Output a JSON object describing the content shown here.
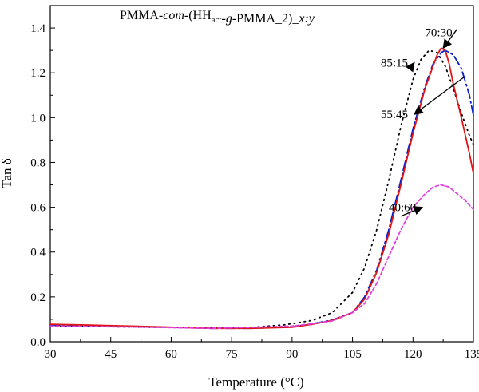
{
  "chart_data": {
    "type": "line",
    "title": {
      "parts": [
        {
          "text": "PMMA-",
          "style": "normal"
        },
        {
          "text": "com",
          "style": "italic"
        },
        {
          "text": "-(HH",
          "style": "normal"
        },
        {
          "text": "act",
          "style": "sub"
        },
        {
          "text": "-",
          "style": "normal"
        },
        {
          "text": "g",
          "style": "italic"
        },
        {
          "text": "-PMMA_2)_",
          "style": "normal"
        },
        {
          "text": "x:y",
          "style": "italic"
        }
      ]
    },
    "xlabel": "Temperature (°C)",
    "ylabel": "Tan δ",
    "xlim": [
      30,
      135
    ],
    "ylim": [
      0.0,
      1.5
    ],
    "xticks": [
      "30",
      "45",
      "60",
      "75",
      "90",
      "105",
      "120",
      "135"
    ],
    "yticks": [
      "0.0",
      "0.2",
      "0.4",
      "0.6",
      "0.8",
      "1.0",
      "1.2",
      "1.4"
    ],
    "grid": false,
    "series": [
      {
        "name": "85:15",
        "color": "#000000",
        "dash": "1.5 5",
        "x": [
          30,
          40,
          50,
          60,
          70,
          80,
          88,
          95,
          100,
          105,
          108,
          111,
          114,
          117,
          120,
          122,
          124,
          126,
          128,
          130,
          132,
          134,
          135
        ],
        "y": [
          0.07,
          0.068,
          0.066,
          0.064,
          0.062,
          0.064,
          0.075,
          0.095,
          0.13,
          0.22,
          0.33,
          0.5,
          0.72,
          0.96,
          1.17,
          1.26,
          1.3,
          1.29,
          1.23,
          1.13,
          1.02,
          0.92,
          0.88
        ]
      },
      {
        "name": "55:45",
        "color": "#0a1fcc",
        "dash": "12 4 2 4",
        "x": [
          30,
          40,
          50,
          60,
          70,
          80,
          90,
          95,
          100,
          105,
          108,
          111,
          114,
          117,
          120,
          123,
          125,
          127,
          128,
          130,
          132,
          134,
          135
        ],
        "y": [
          0.075,
          0.072,
          0.068,
          0.064,
          0.06,
          0.06,
          0.066,
          0.08,
          0.097,
          0.13,
          0.2,
          0.32,
          0.5,
          0.72,
          0.95,
          1.14,
          1.24,
          1.29,
          1.3,
          1.28,
          1.22,
          1.1,
          1.01
        ]
      },
      {
        "name": "70:30",
        "color": "#e01414",
        "dash": "",
        "x": [
          30,
          40,
          50,
          60,
          70,
          80,
          90,
          95,
          100,
          105,
          108,
          111,
          114,
          117,
          120,
          123,
          125,
          126,
          127,
          128,
          129,
          130,
          132,
          134,
          135
        ],
        "y": [
          0.078,
          0.074,
          0.07,
          0.065,
          0.06,
          0.06,
          0.065,
          0.078,
          0.095,
          0.13,
          0.19,
          0.31,
          0.48,
          0.7,
          0.93,
          1.13,
          1.23,
          1.28,
          1.31,
          1.3,
          1.24,
          1.15,
          1.0,
          0.84,
          0.75
        ]
      },
      {
        "name": "40:60",
        "color": "#e040e0",
        "dash": "4 3",
        "x": [
          30,
          40,
          50,
          60,
          70,
          80,
          90,
          95,
          100,
          105,
          108,
          111,
          114,
          117,
          120,
          123,
          125,
          127,
          129,
          131,
          133,
          135
        ],
        "y": [
          0.07,
          0.068,
          0.066,
          0.063,
          0.06,
          0.064,
          0.07,
          0.08,
          0.093,
          0.13,
          0.17,
          0.26,
          0.38,
          0.5,
          0.6,
          0.66,
          0.69,
          0.7,
          0.69,
          0.66,
          0.63,
          0.59
        ]
      }
    ],
    "annotations": [
      {
        "text": "70:30",
        "text_x": 123,
        "text_y": 1.38,
        "arrow_to_x": 127.5,
        "arrow_to_y": 1.31
      },
      {
        "text": "85:15",
        "text_x": 112,
        "text_y": 1.245,
        "arrow_to_x": 119.5,
        "arrow_to_y": 1.225
      },
      {
        "text": "55:45",
        "text_x": 112,
        "text_y": 1.015,
        "arrow_to_x": 133,
        "arrow_to_y": 1.185
      },
      {
        "text": "40:60",
        "text_x": 114,
        "text_y": 0.6,
        "arrow_to_x": 114.8,
        "arrow_to_y": 0.6
      }
    ]
  }
}
